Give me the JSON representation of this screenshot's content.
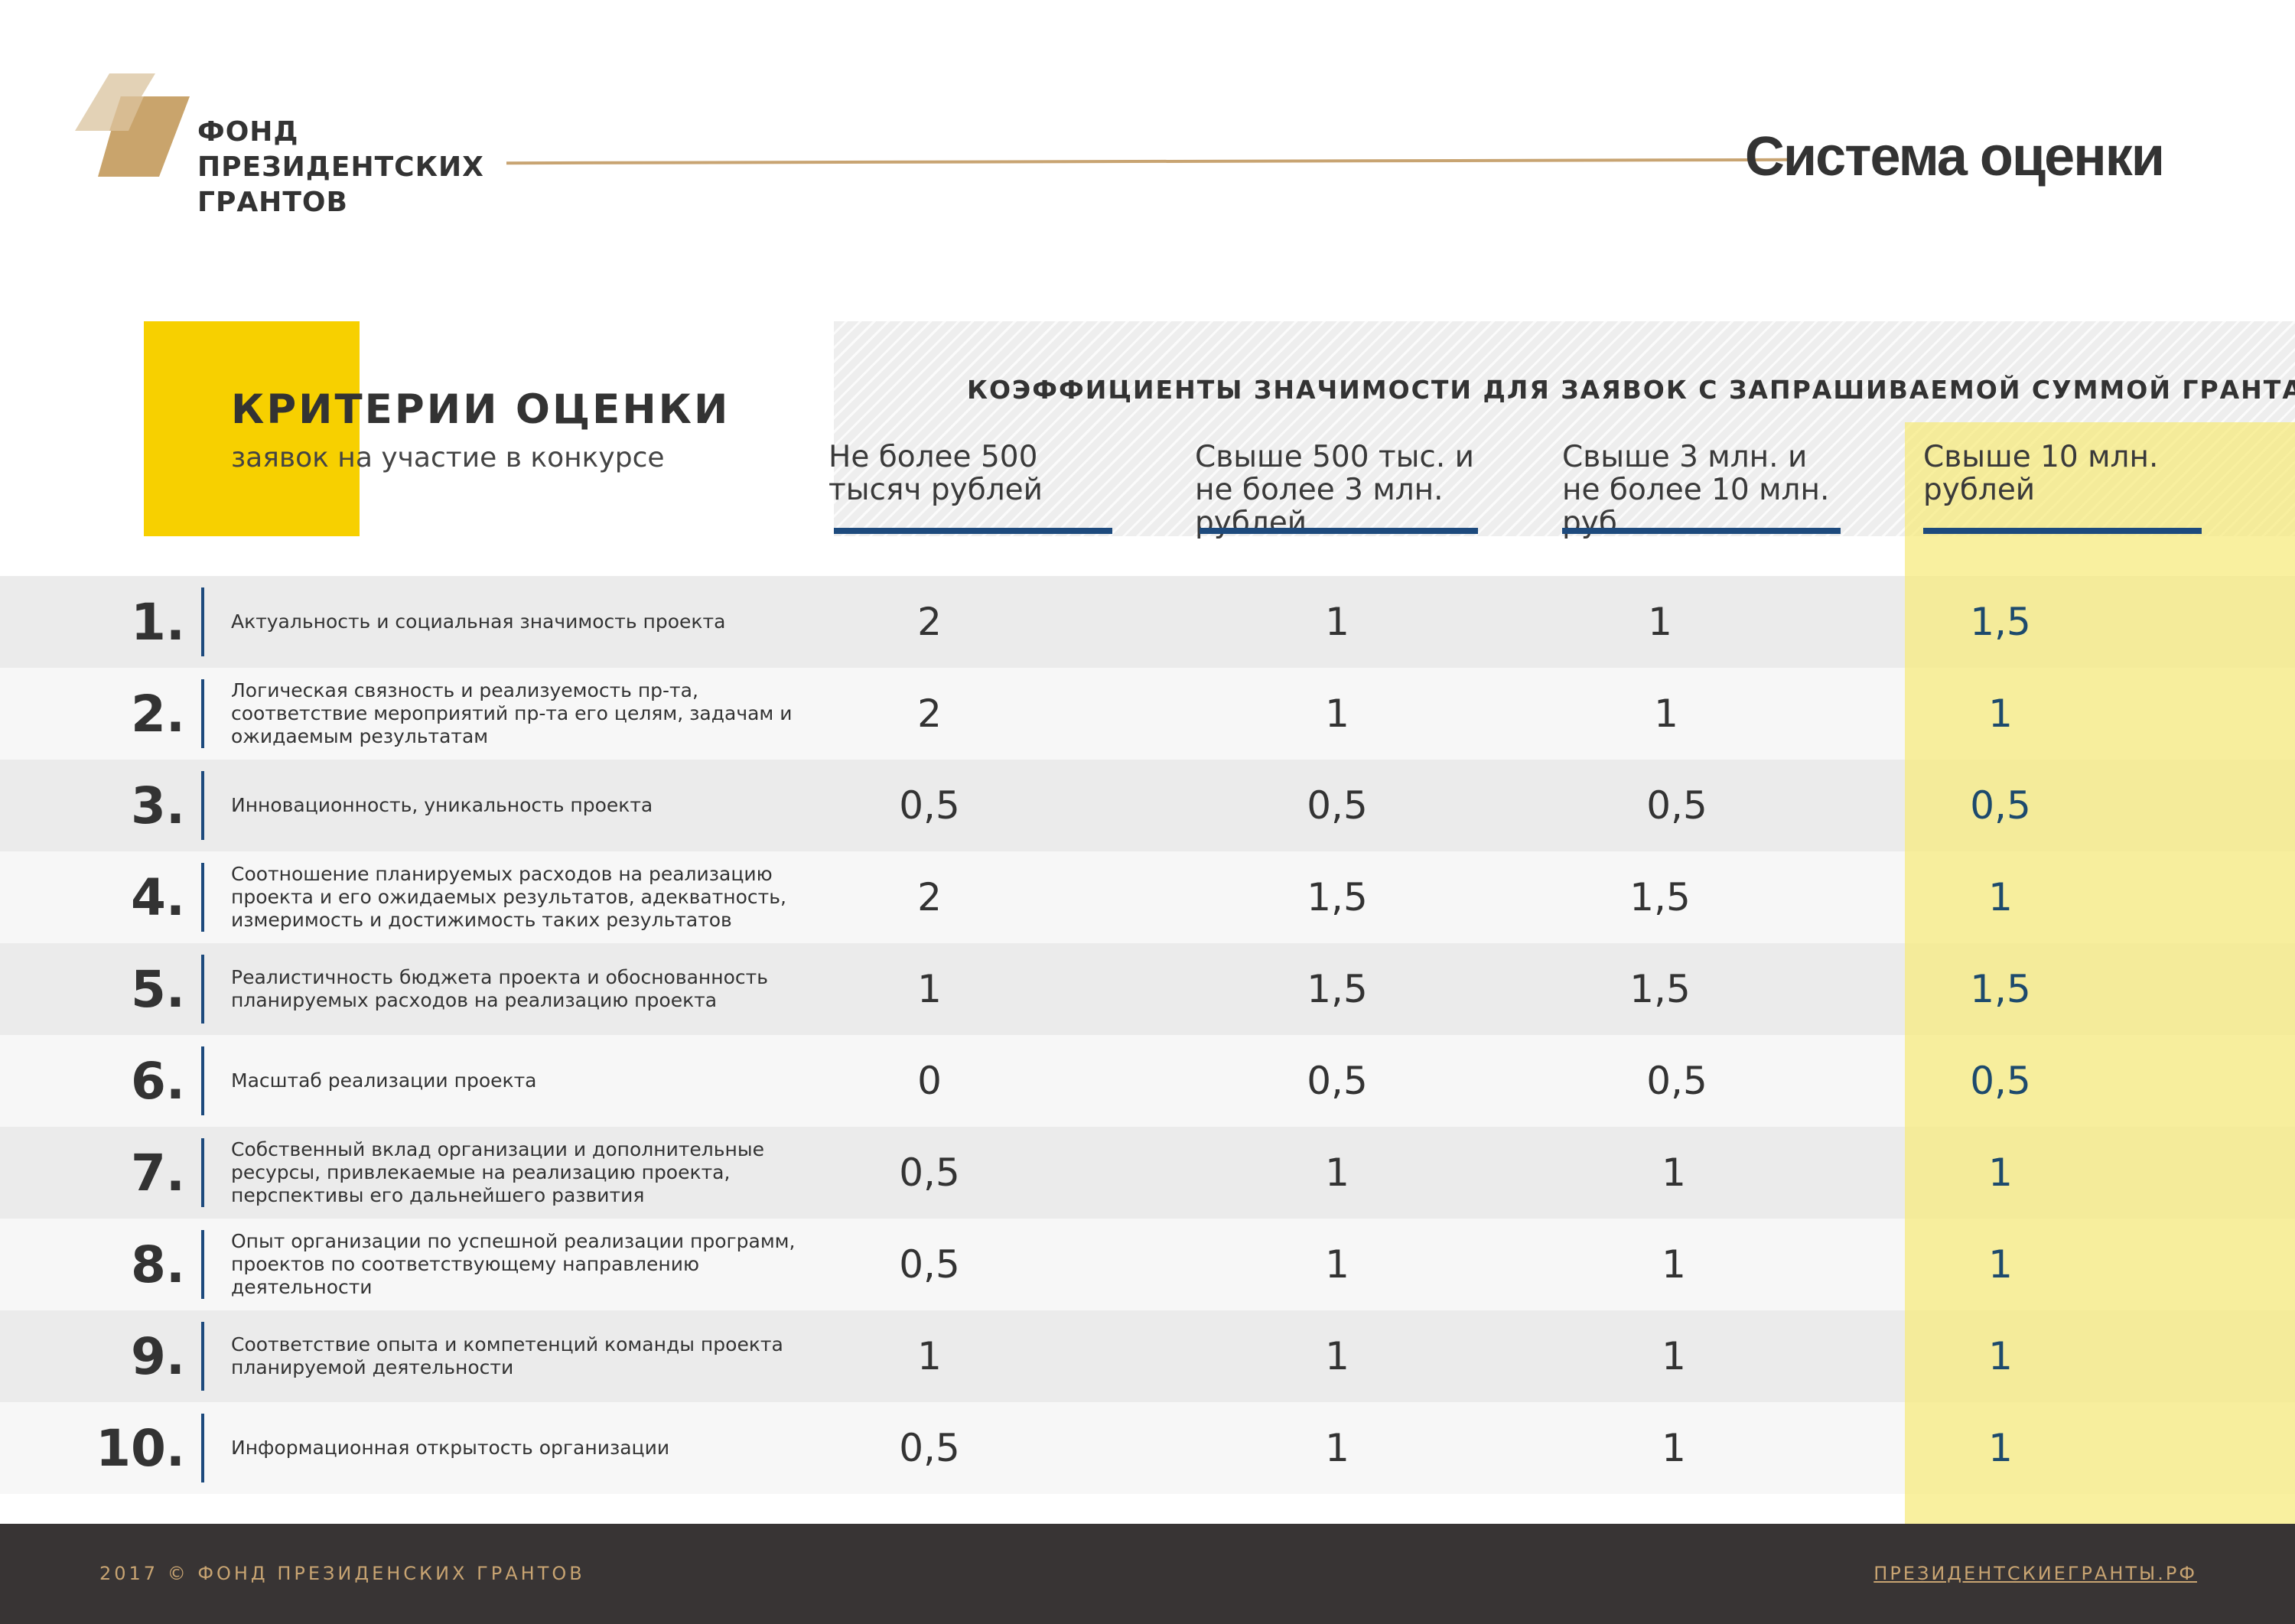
{
  "brand": {
    "logo_lines": [
      "ФОНД",
      "ПРЕЗИДЕНТСКИХ",
      "ГРАНТОВ"
    ],
    "accent_color": "#c8a472",
    "highlight_color": "#f7d000",
    "blue_color": "#1d4a7d"
  },
  "page_title": "Система оценки",
  "criteria": {
    "title": "КРИТЕРИИ ОЦЕНКИ",
    "subtitle": "заявок на участие в конкурсе"
  },
  "coefficients": {
    "title": "КОЭФФИЦИЕНТЫ ЗНАЧИМОСТИ ДЛЯ ЗАЯВОК С ЗАПРАШИВАЕМОЙ СУММОЙ ГРАНТА",
    "columns": [
      "Не более 500 тысяч рублей",
      "Свыше 500 тыс. и не более 3 млн. рублей",
      "Свыше 3 млн. и не более 10 млн. руб.",
      "Свыше 10 млн. рублей"
    ]
  },
  "rows": [
    {
      "num": "1.",
      "text": "Актуальность и социальная значимость проекта",
      "values": [
        "2",
        "1",
        "1",
        "1,5"
      ]
    },
    {
      "num": "2.",
      "text": "Логическая связность и реализуемость пр-та, соответствие мероприятий пр-та его целям, задачам и ожидаемым результатам",
      "values": [
        "2",
        "1",
        "1",
        "1"
      ]
    },
    {
      "num": "3.",
      "text": "Инновационность, уникальность проекта",
      "values": [
        "0,5",
        "0,5",
        "0,5",
        "0,5"
      ]
    },
    {
      "num": "4.",
      "text": "Соотношение планируемых расходов на реализацию проекта и его ожидаемых результатов, адекватность, измеримость и достижимость таких результатов",
      "values": [
        "2",
        "1,5",
        "1,5",
        "1"
      ]
    },
    {
      "num": "5.",
      "text": "Реалистичность бюджета проекта и обоснованность планируемых расходов на реализацию проекта",
      "values": [
        "1",
        "1,5",
        "1,5",
        "1,5"
      ]
    },
    {
      "num": "6.",
      "text": "Масштаб реализации проекта",
      "values": [
        "0",
        "0,5",
        "0,5",
        "0,5"
      ]
    },
    {
      "num": "7.",
      "text": "Собственный вклад организации и дополнительные ресурсы, привлекаемые на реализацию проекта, перспективы его дальнейшего развития",
      "values": [
        "0,5",
        "1",
        "1",
        "1"
      ]
    },
    {
      "num": "8.",
      "text": "Опыт организации по успешной реализации программ, проектов по соответствующему направлению деятельности",
      "values": [
        "0,5",
        "1",
        "1",
        "1"
      ]
    },
    {
      "num": "9.",
      "text": "Соответствие опыта и компетенций команды проекта планируемой деятельности",
      "values": [
        "1",
        "1",
        "1",
        "1"
      ]
    },
    {
      "num": "10.",
      "text": "Информационная открытость организации",
      "values": [
        "0,5",
        "1",
        "1",
        "1"
      ]
    }
  ],
  "footer": {
    "copyright": "2017 © ФОНД ПРЕЗИДЕНСКИХ ГРАНТОВ",
    "link": "ПРЕЗИДЕНТСКИЕГРАНТЫ.РФ"
  }
}
